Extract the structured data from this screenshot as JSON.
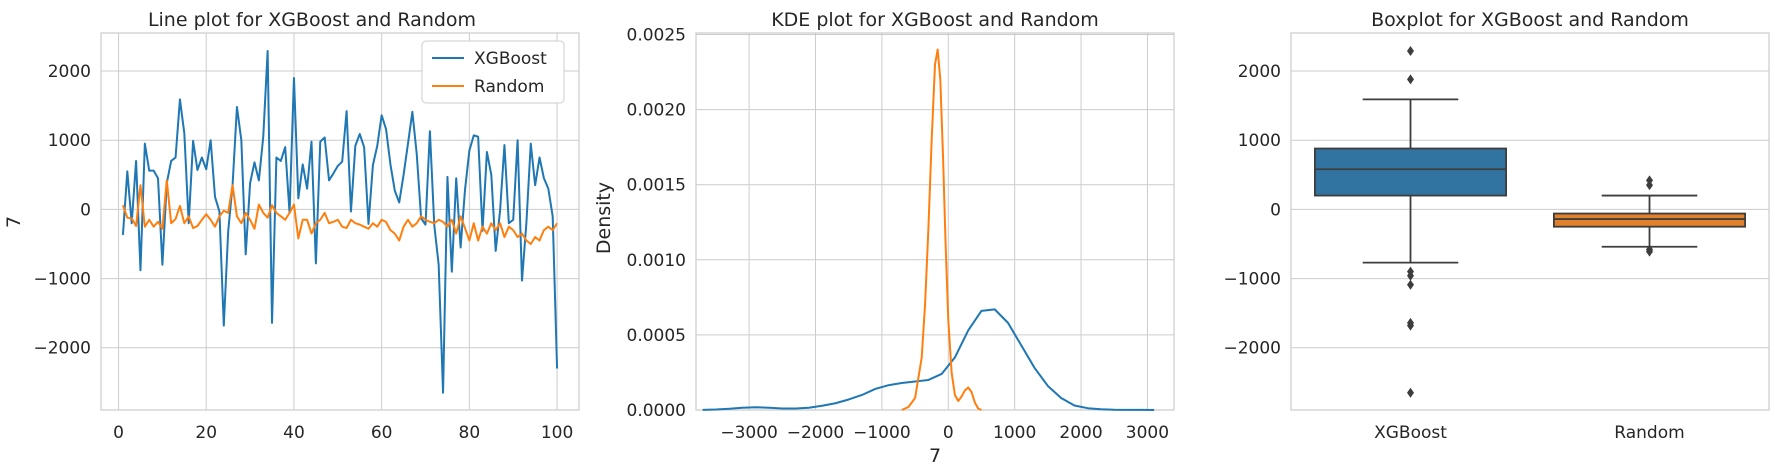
{
  "chart_data": [
    {
      "type": "line",
      "title": "Line plot for XGBoost and Random",
      "xlabel": "",
      "ylabel": "7",
      "xlim": [
        -4,
        105
      ],
      "ylim": [
        -2900,
        2550
      ],
      "xticks": [
        0,
        20,
        40,
        60,
        80,
        100
      ],
      "yticks": [
        -2000,
        -1000,
        0,
        1000,
        2000
      ],
      "grid": true,
      "legend": "top-right",
      "series": [
        {
          "name": "XGBoost",
          "color": "#1f77b4",
          "x": [
            1,
            2,
            3,
            4,
            5,
            6,
            7,
            8,
            9,
            10,
            11,
            12,
            13,
            14,
            15,
            16,
            17,
            18,
            19,
            20,
            21,
            22,
            23,
            24,
            25,
            26,
            27,
            28,
            29,
            30,
            31,
            32,
            33,
            34,
            35,
            36,
            37,
            38,
            39,
            40,
            41,
            42,
            43,
            44,
            45,
            46,
            47,
            48,
            49,
            50,
            51,
            52,
            53,
            54,
            55,
            56,
            57,
            58,
            59,
            60,
            61,
            62,
            63,
            64,
            65,
            66,
            67,
            68,
            69,
            70,
            71,
            72,
            73,
            74,
            75,
            76,
            77,
            78,
            79,
            80,
            81,
            82,
            83,
            84,
            85,
            86,
            87,
            88,
            89,
            90,
            91,
            92,
            93,
            94,
            95,
            96,
            97,
            98,
            99,
            100
          ],
          "values": [
            -370,
            550,
            -200,
            700,
            -880,
            950,
            560,
            560,
            450,
            -800,
            380,
            700,
            750,
            1590,
            1100,
            -200,
            990,
            570,
            750,
            580,
            1000,
            180,
            -30,
            -1680,
            -320,
            350,
            1480,
            1000,
            -650,
            380,
            680,
            420,
            1050,
            2290,
            -1640,
            750,
            700,
            900,
            -50,
            1900,
            160,
            650,
            300,
            980,
            -780,
            980,
            1040,
            420,
            520,
            630,
            690,
            1420,
            -30,
            920,
            1090,
            900,
            -210,
            640,
            920,
            1360,
            1160,
            650,
            270,
            100,
            500,
            950,
            1410,
            800,
            -130,
            -220,
            1130,
            -230,
            -800,
            -2650,
            470,
            -900,
            450,
            -550,
            280,
            850,
            1070,
            1050,
            -310,
            830,
            500,
            -600,
            -20,
            930,
            -200,
            -150,
            1000,
            -1030,
            -200,
            950,
            350,
            750,
            450,
            300,
            -100,
            -2300
          ],
          "values_note": ""
        },
        {
          "name": "Random",
          "color": "#ff7f0e",
          "x": [
            1,
            2,
            3,
            4,
            5,
            6,
            7,
            8,
            9,
            10,
            11,
            12,
            13,
            14,
            15,
            16,
            17,
            18,
            19,
            20,
            21,
            22,
            23,
            24,
            25,
            26,
            27,
            28,
            29,
            30,
            31,
            32,
            33,
            34,
            35,
            36,
            37,
            38,
            39,
            40,
            41,
            42,
            43,
            44,
            45,
            46,
            47,
            48,
            49,
            50,
            51,
            52,
            53,
            54,
            55,
            56,
            57,
            58,
            59,
            60,
            61,
            62,
            63,
            64,
            65,
            66,
            67,
            68,
            69,
            70,
            71,
            72,
            73,
            74,
            75,
            76,
            77,
            78,
            79,
            80,
            81,
            82,
            83,
            84,
            85,
            86,
            87,
            88,
            89,
            90,
            91,
            92,
            93,
            94,
            95,
            96,
            97,
            98,
            99,
            100
          ],
          "values": [
            60,
            -120,
            -130,
            -240,
            350,
            -250,
            -150,
            -250,
            -180,
            -280,
            420,
            -200,
            -140,
            50,
            -200,
            -100,
            -270,
            -240,
            -150,
            -70,
            -150,
            -250,
            -100,
            -20,
            -50,
            350,
            -100,
            -200,
            -50,
            -150,
            -280,
            70,
            -50,
            -120,
            60,
            -50,
            -100,
            -150,
            -50,
            70,
            -420,
            -150,
            -150,
            -350,
            -200,
            -150,
            -50,
            -200,
            -180,
            -150,
            -250,
            -270,
            -150,
            -200,
            -220,
            -250,
            -280,
            -200,
            -250,
            -150,
            -180,
            -300,
            -350,
            -450,
            -250,
            -150,
            -250,
            -200,
            -100,
            -150,
            -180,
            -200,
            -150,
            -180,
            -250,
            -150,
            -350,
            -100,
            -270,
            -450,
            -200,
            -450,
            -250,
            -350,
            -200,
            -300,
            -200,
            -400,
            -250,
            -300,
            -400,
            -350,
            -450,
            -500,
            -400,
            -450,
            -300,
            -250,
            -300,
            -200
          ],
          "values_note": ""
        }
      ]
    },
    {
      "type": "area",
      "title": "KDE plot for XGBoost and Random",
      "xlabel": "7",
      "ylabel": "Density",
      "xlim": [
        -3800,
        3400
      ],
      "ylim": [
        0,
        0.00251
      ],
      "xticks": [
        -3000,
        -2000,
        -1000,
        0,
        1000,
        2000,
        3000
      ],
      "yticks": [
        "0.0000",
        "0.0005",
        "0.0010",
        "0.0015",
        "0.0020",
        "0.0025"
      ],
      "grid": true,
      "series": [
        {
          "name": "XGBoost",
          "color": "#1f77b4",
          "x": [
            -3700,
            -3500,
            -3300,
            -3100,
            -2900,
            -2700,
            -2500,
            -2300,
            -2100,
            -1900,
            -1700,
            -1500,
            -1300,
            -1100,
            -900,
            -700,
            -500,
            -300,
            -100,
            100,
            300,
            500,
            700,
            900,
            1100,
            1300,
            1500,
            1700,
            1900,
            2100,
            2300,
            2500,
            2700,
            2900,
            3100
          ],
          "values": [
            1e-06,
            3e-06,
            8e-06,
            1.5e-05,
            1.8e-05,
            1.5e-05,
            1e-05,
            1e-05,
            1.5e-05,
            2.8e-05,
            4.5e-05,
            7e-05,
            0.0001,
            0.00014,
            0.000165,
            0.00018,
            0.00019,
            0.0002,
            0.00024,
            0.00035,
            0.00053,
            0.00066,
            0.00067,
            0.00058,
            0.00043,
            0.00028,
            0.00016,
            8e-05,
            3e-05,
            1.2e-05,
            5e-06,
            2e-06,
            1e-06,
            5e-07,
            2e-07
          ]
        },
        {
          "name": "Random",
          "color": "#ff7f0e",
          "x": [
            -700,
            -600,
            -500,
            -400,
            -350,
            -300,
            -250,
            -200,
            -160,
            -120,
            -80,
            -40,
            0,
            50,
            100,
            150,
            200,
            250,
            300,
            350,
            400,
            450,
            500
          ],
          "values": [
            0.0,
            2e-05,
            8e-05,
            0.00035,
            0.0007,
            0.0012,
            0.0018,
            0.0023,
            0.0024,
            0.0022,
            0.0017,
            0.0011,
            0.0006,
            0.00025,
            0.0001,
            6e-05,
            9e-05,
            0.00013,
            0.00015,
            0.00012,
            5e-05,
            1e-05,
            0.0
          ]
        }
      ]
    },
    {
      "type": "box",
      "title": "Boxplot for XGBoost and Random",
      "xlabel": "",
      "ylabel": "",
      "categories": [
        "XGBoost",
        "Random"
      ],
      "ylim": [
        -2900,
        2550
      ],
      "yticks": [
        -2000,
        -1000,
        0,
        1000,
        2000
      ],
      "grid": true,
      "boxes": [
        {
          "name": "XGBoost",
          "color": "#3274a1",
          "whisker_low": -770,
          "q1": 200,
          "median": 580,
          "q3": 880,
          "whisker_high": 1590,
          "outliers": [
            2290,
            1880,
            -900,
            -960,
            -1090,
            -1640,
            -1680,
            -2650
          ]
        },
        {
          "name": "Random",
          "color": "#e1812c",
          "whisker_low": -540,
          "q1": -250,
          "median": -140,
          "q3": -60,
          "whisker_high": 200,
          "outliers": [
            420,
            350,
            -580,
            -610
          ]
        }
      ]
    }
  ]
}
